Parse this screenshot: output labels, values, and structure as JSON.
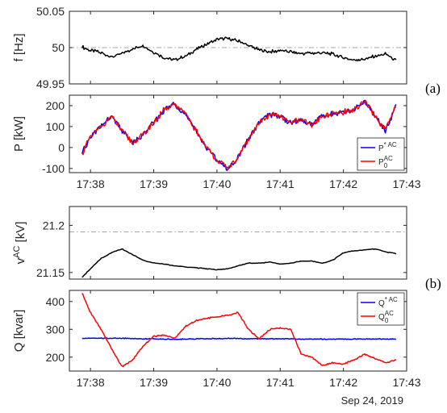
{
  "figure": {
    "date": "Sep 24, 2019",
    "panel_labels": [
      "(a)",
      "(b)"
    ]
  },
  "colors": {
    "black": "#000000",
    "blue": "#0000ff",
    "red": "#ff0000",
    "reference_line": "#a6a6a6",
    "axis": "#262626"
  },
  "chart_data": [
    {
      "type": "line",
      "panel": "(a)",
      "ylabel": "f [Hz]",
      "xlim": [
        "17:37:40",
        "17:43:00"
      ],
      "ylim": [
        49.95,
        50.05
      ],
      "yticks": [
        "49.95",
        "50",
        "50.05"
      ],
      "xticks": [],
      "reference_line": {
        "y": 50,
        "style": "dash-dot"
      },
      "series": [
        {
          "color": "#000000",
          "x": [
            "17:37:52",
            "17:38:00",
            "17:38:10",
            "17:38:20",
            "17:38:30",
            "17:38:40",
            "17:38:50",
            "17:39:00",
            "17:39:10",
            "17:39:20",
            "17:39:30",
            "17:39:40",
            "17:39:50",
            "17:40:00",
            "17:40:10",
            "17:40:20",
            "17:40:30",
            "17:40:40",
            "17:40:50",
            "17:41:00",
            "17:41:10",
            "17:41:20",
            "17:41:30",
            "17:41:40",
            "17:41:50",
            "17:42:00",
            "17:42:10",
            "17:42:20",
            "17:42:30",
            "17:42:40",
            "17:42:50"
          ],
          "values": [
            50.001,
            49.996,
            49.993,
            49.987,
            49.992,
            49.998,
            50.003,
            49.994,
            49.986,
            49.983,
            49.988,
            49.997,
            50.005,
            50.011,
            50.013,
            50.009,
            50.003,
            49.997,
            49.994,
            49.996,
            49.994,
            49.992,
            49.992,
            49.993,
            49.991,
            49.986,
            49.983,
            49.984,
            49.988,
            49.991,
            49.982
          ]
        }
      ]
    },
    {
      "type": "line",
      "panel": "(a)",
      "ylabel": "P [kW]",
      "xlim": [
        "17:37:40",
        "17:43:00"
      ],
      "ylim": [
        -120,
        250
      ],
      "yticks": [
        "-100",
        "0",
        "100",
        "200"
      ],
      "xticks": [
        "17:38",
        "17:39",
        "17:40",
        "17:41",
        "17:42",
        "17:43"
      ],
      "legend": {
        "location": "bottom-right",
        "entries": [
          [
            "P",
            "*",
            "AC",
            ""
          ],
          [
            "P",
            "",
            "AC",
            "0"
          ]
        ]
      },
      "series": [
        {
          "legend_index": 0,
          "color": "#0000ff",
          "x": [
            "17:37:52",
            "17:38:00",
            "17:38:10",
            "17:38:20",
            "17:38:30",
            "17:38:40",
            "17:38:50",
            "17:39:00",
            "17:39:10",
            "17:39:20",
            "17:39:30",
            "17:39:40",
            "17:39:50",
            "17:40:00",
            "17:40:10",
            "17:40:20",
            "17:40:30",
            "17:40:40",
            "17:40:50",
            "17:41:00",
            "17:41:10",
            "17:41:20",
            "17:41:30",
            "17:41:40",
            "17:41:50",
            "17:42:00",
            "17:42:10",
            "17:42:20",
            "17:42:30",
            "17:42:40",
            "17:42:50"
          ],
          "values": [
            -30,
            50,
            100,
            150,
            80,
            20,
            60,
            120,
            180,
            210,
            160,
            80,
            0,
            -60,
            -100,
            -50,
            40,
            120,
            160,
            150,
            120,
            130,
            110,
            150,
            160,
            170,
            180,
            220,
            150,
            80,
            200
          ]
        },
        {
          "legend_index": 1,
          "color": "#ff0000",
          "x": [
            "17:37:52",
            "17:38:00",
            "17:38:10",
            "17:38:20",
            "17:38:30",
            "17:38:40",
            "17:38:50",
            "17:39:00",
            "17:39:10",
            "17:39:20",
            "17:39:30",
            "17:39:40",
            "17:39:50",
            "17:40:00",
            "17:40:10",
            "17:40:20",
            "17:40:30",
            "17:40:40",
            "17:40:50",
            "17:41:00",
            "17:41:10",
            "17:41:20",
            "17:41:30",
            "17:41:40",
            "17:41:50",
            "17:42:00",
            "17:42:10",
            "17:42:20",
            "17:42:30",
            "17:42:40",
            "17:42:50"
          ],
          "values": [
            -30,
            50,
            100,
            150,
            80,
            20,
            60,
            120,
            180,
            210,
            160,
            80,
            0,
            -60,
            -100,
            -50,
            40,
            120,
            160,
            150,
            120,
            130,
            110,
            150,
            160,
            170,
            180,
            220,
            150,
            80,
            200
          ]
        }
      ]
    },
    {
      "type": "line",
      "panel": "(b)",
      "ylabel": "vAC [kV]",
      "xlim": [
        "17:37:40",
        "17:43:00"
      ],
      "ylim": [
        21.143,
        21.22
      ],
      "yticks": [
        "21.15",
        "21.2"
      ],
      "xticks": [],
      "reference_line": {
        "y": 21.193,
        "style": "dash-dot"
      },
      "series": [
        {
          "color": "#000000",
          "x": [
            "17:37:52",
            "17:38:00",
            "17:38:10",
            "17:38:20",
            "17:38:30",
            "17:38:40",
            "17:38:50",
            "17:39:00",
            "17:39:10",
            "17:39:20",
            "17:39:30",
            "17:39:40",
            "17:39:50",
            "17:40:00",
            "17:40:10",
            "17:40:20",
            "17:40:30",
            "17:40:40",
            "17:40:50",
            "17:41:00",
            "17:41:10",
            "17:41:20",
            "17:41:30",
            "17:41:40",
            "17:41:50",
            "17:42:00",
            "17:42:10",
            "17:42:20",
            "17:42:30",
            "17:42:40",
            "17:42:50"
          ],
          "values": [
            21.145,
            21.154,
            21.165,
            21.171,
            21.175,
            21.169,
            21.163,
            21.16,
            21.159,
            21.157,
            21.156,
            21.155,
            21.154,
            21.153,
            21.154,
            21.157,
            21.16,
            21.16,
            21.161,
            21.159,
            21.16,
            21.162,
            21.162,
            21.16,
            21.163,
            21.171,
            21.173,
            21.174,
            21.175,
            21.172,
            21.17
          ]
        }
      ]
    },
    {
      "type": "line",
      "panel": "(b)",
      "ylabel": "Q [kvar]",
      "xlim": [
        "17:37:40",
        "17:43:00"
      ],
      "ylim": [
        150,
        440
      ],
      "yticks": [
        "200",
        "300",
        "400"
      ],
      "xticks": [
        "17:38",
        "17:39",
        "17:40",
        "17:41",
        "17:42",
        "17:43"
      ],
      "legend": {
        "location": "top-right",
        "entries": [
          [
            "Q",
            "*",
            "AC",
            ""
          ],
          [
            "Q",
            "",
            "AC",
            "0"
          ]
        ]
      },
      "series": [
        {
          "legend_index": 0,
          "color": "#0000ff",
          "x": [
            "17:37:52",
            "17:38:00",
            "17:38:10",
            "17:38:20",
            "17:38:30",
            "17:38:40",
            "17:38:50",
            "17:39:00",
            "17:39:10",
            "17:39:20",
            "17:39:30",
            "17:39:40",
            "17:39:50",
            "17:40:00",
            "17:40:10",
            "17:40:20",
            "17:40:30",
            "17:40:40",
            "17:40:50",
            "17:41:00",
            "17:41:10",
            "17:41:20",
            "17:41:30",
            "17:41:40",
            "17:41:50",
            "17:42:00",
            "17:42:10",
            "17:42:20",
            "17:42:30",
            "17:42:40",
            "17:42:50"
          ],
          "values": [
            268,
            268,
            268,
            268,
            268,
            267,
            266,
            266,
            265,
            264,
            265,
            266,
            266,
            267,
            267,
            267,
            266,
            266,
            266,
            266,
            266,
            265,
            265,
            265,
            265,
            265,
            265,
            265,
            265,
            265,
            265
          ]
        },
        {
          "legend_index": 1,
          "color": "#ff0000",
          "x": [
            "17:37:52",
            "17:38:00",
            "17:38:10",
            "17:38:20",
            "17:38:30",
            "17:38:40",
            "17:38:50",
            "17:39:00",
            "17:39:10",
            "17:39:20",
            "17:39:30",
            "17:39:40",
            "17:39:50",
            "17:40:00",
            "17:40:10",
            "17:40:20",
            "17:40:30",
            "17:40:40",
            "17:40:50",
            "17:41:00",
            "17:41:10",
            "17:41:20",
            "17:41:30",
            "17:41:40",
            "17:41:50",
            "17:42:00",
            "17:42:10",
            "17:42:20",
            "17:42:30",
            "17:42:40",
            "17:42:50"
          ],
          "values": [
            430,
            360,
            300,
            230,
            165,
            190,
            240,
            275,
            280,
            268,
            310,
            330,
            340,
            345,
            350,
            360,
            300,
            265,
            300,
            305,
            300,
            210,
            200,
            170,
            180,
            175,
            190,
            210,
            195,
            180,
            190
          ]
        }
      ]
    }
  ]
}
